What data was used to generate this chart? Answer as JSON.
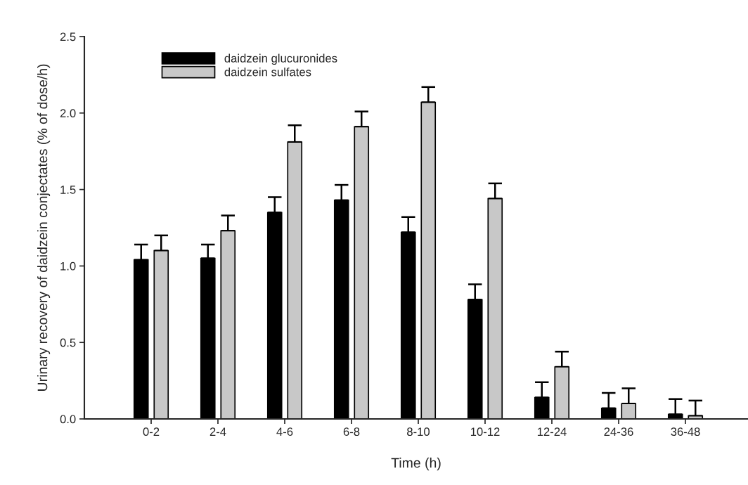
{
  "chart_data": {
    "type": "bar",
    "xlabel": "Time (h)",
    "ylabel": "Urinary recovery of daidzein conjectates (% of dose/h)",
    "categories": [
      "0-2",
      "2-4",
      "4-6",
      "6-8",
      "8-10",
      "10-12",
      "12-24",
      "24-36",
      "36-48"
    ],
    "series": [
      {
        "name": "daidzein glucuronides",
        "color": "#000000",
        "values": [
          1.04,
          1.05,
          1.35,
          1.43,
          1.22,
          0.78,
          0.14,
          0.07,
          0.03
        ],
        "errors": [
          [
            1.04,
            1.14
          ],
          [
            1.05,
            1.14
          ],
          [
            1.35,
            1.45
          ],
          [
            1.43,
            1.53
          ],
          [
            1.22,
            1.32
          ],
          [
            0.78,
            0.88
          ],
          [
            0.14,
            0.24
          ],
          [
            0.07,
            0.17
          ],
          [
            0.03,
            0.13
          ]
        ]
      },
      {
        "name": "daidzein sulfates",
        "color": "#c8c8c8",
        "values": [
          1.1,
          1.23,
          1.81,
          1.91,
          2.07,
          1.44,
          0.34,
          0.1,
          0.02
        ],
        "errors": [
          [
            1.1,
            1.2
          ],
          [
            1.23,
            1.33
          ],
          [
            1.81,
            1.92
          ],
          [
            1.91,
            2.01
          ],
          [
            2.07,
            2.17
          ],
          [
            1.44,
            1.54
          ],
          [
            0.34,
            0.44
          ],
          [
            0.1,
            0.2
          ],
          [
            0.02,
            0.12
          ]
        ]
      }
    ],
    "ylim": [
      0,
      2.5
    ],
    "yticks": [
      {
        "value": 0,
        "label": "0.0"
      },
      {
        "value": 0.5,
        "label": "0.5"
      },
      {
        "value": 1,
        "label": "1.0"
      },
      {
        "value": 1.5,
        "label": "1.5"
      },
      {
        "value": 2,
        "label": "2.0"
      },
      {
        "value": 2.5,
        "label": "2.5"
      }
    ],
    "legend": "top left",
    "grid": false
  }
}
